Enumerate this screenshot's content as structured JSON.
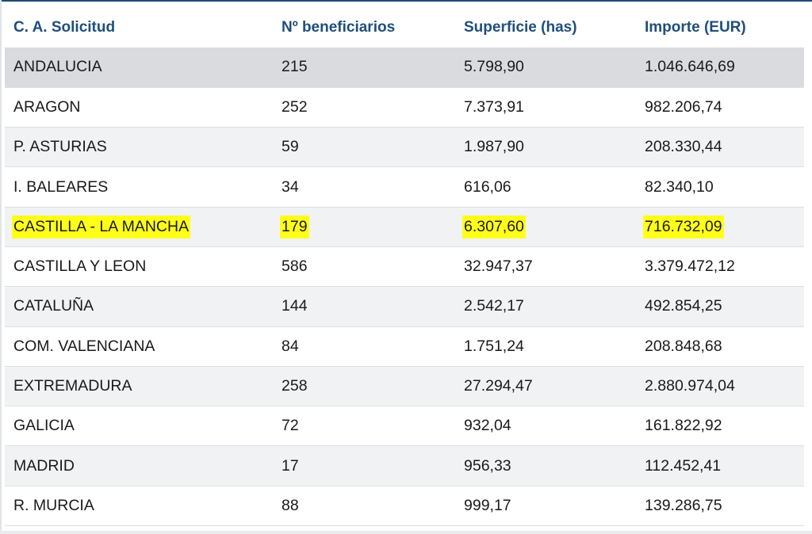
{
  "table": {
    "headers": [
      "C. A. Solicitud",
      "Nº beneficiarios",
      "Superficie (has)",
      "Importe (EUR)"
    ],
    "rows": [
      [
        "ANDALUCIA",
        "215",
        "5.798,90",
        "1.046.646,69"
      ],
      [
        "ARAGON",
        "252",
        "7.373,91",
        "982.206,74"
      ],
      [
        "P. ASTURIAS",
        "59",
        "1.987,90",
        "208.330,44"
      ],
      [
        "I. BALEARES",
        "34",
        "616,06",
        "82.340,10"
      ],
      [
        "CASTILLA - LA MANCHA",
        "179",
        "6.307,60",
        "716.732,09"
      ],
      [
        "CASTILLA Y LEON",
        "586",
        "32.947,37",
        "3.379.472,12"
      ],
      [
        "CATALUÑA",
        "144",
        "2.542,17",
        "492.854,25"
      ],
      [
        "COM. VALENCIANA",
        "84",
        "1.751,24",
        "208.848,68"
      ],
      [
        "EXTREMADURA",
        "258",
        "27.294,47",
        "2.880.974,04"
      ],
      [
        "GALICIA",
        "72",
        "932,04",
        "161.822,92"
      ],
      [
        "MADRID",
        "17",
        "956,33",
        "112.452,41"
      ],
      [
        "R. MURCIA",
        "88",
        "999,17",
        "139.286,75"
      ]
    ],
    "highlighted_row": 4
  },
  "colors": {
    "header_text": "#1f4e7d",
    "highlight": "#ffff1a",
    "row_alt": "#f1f2f4",
    "row_first": "#d9dbde"
  }
}
